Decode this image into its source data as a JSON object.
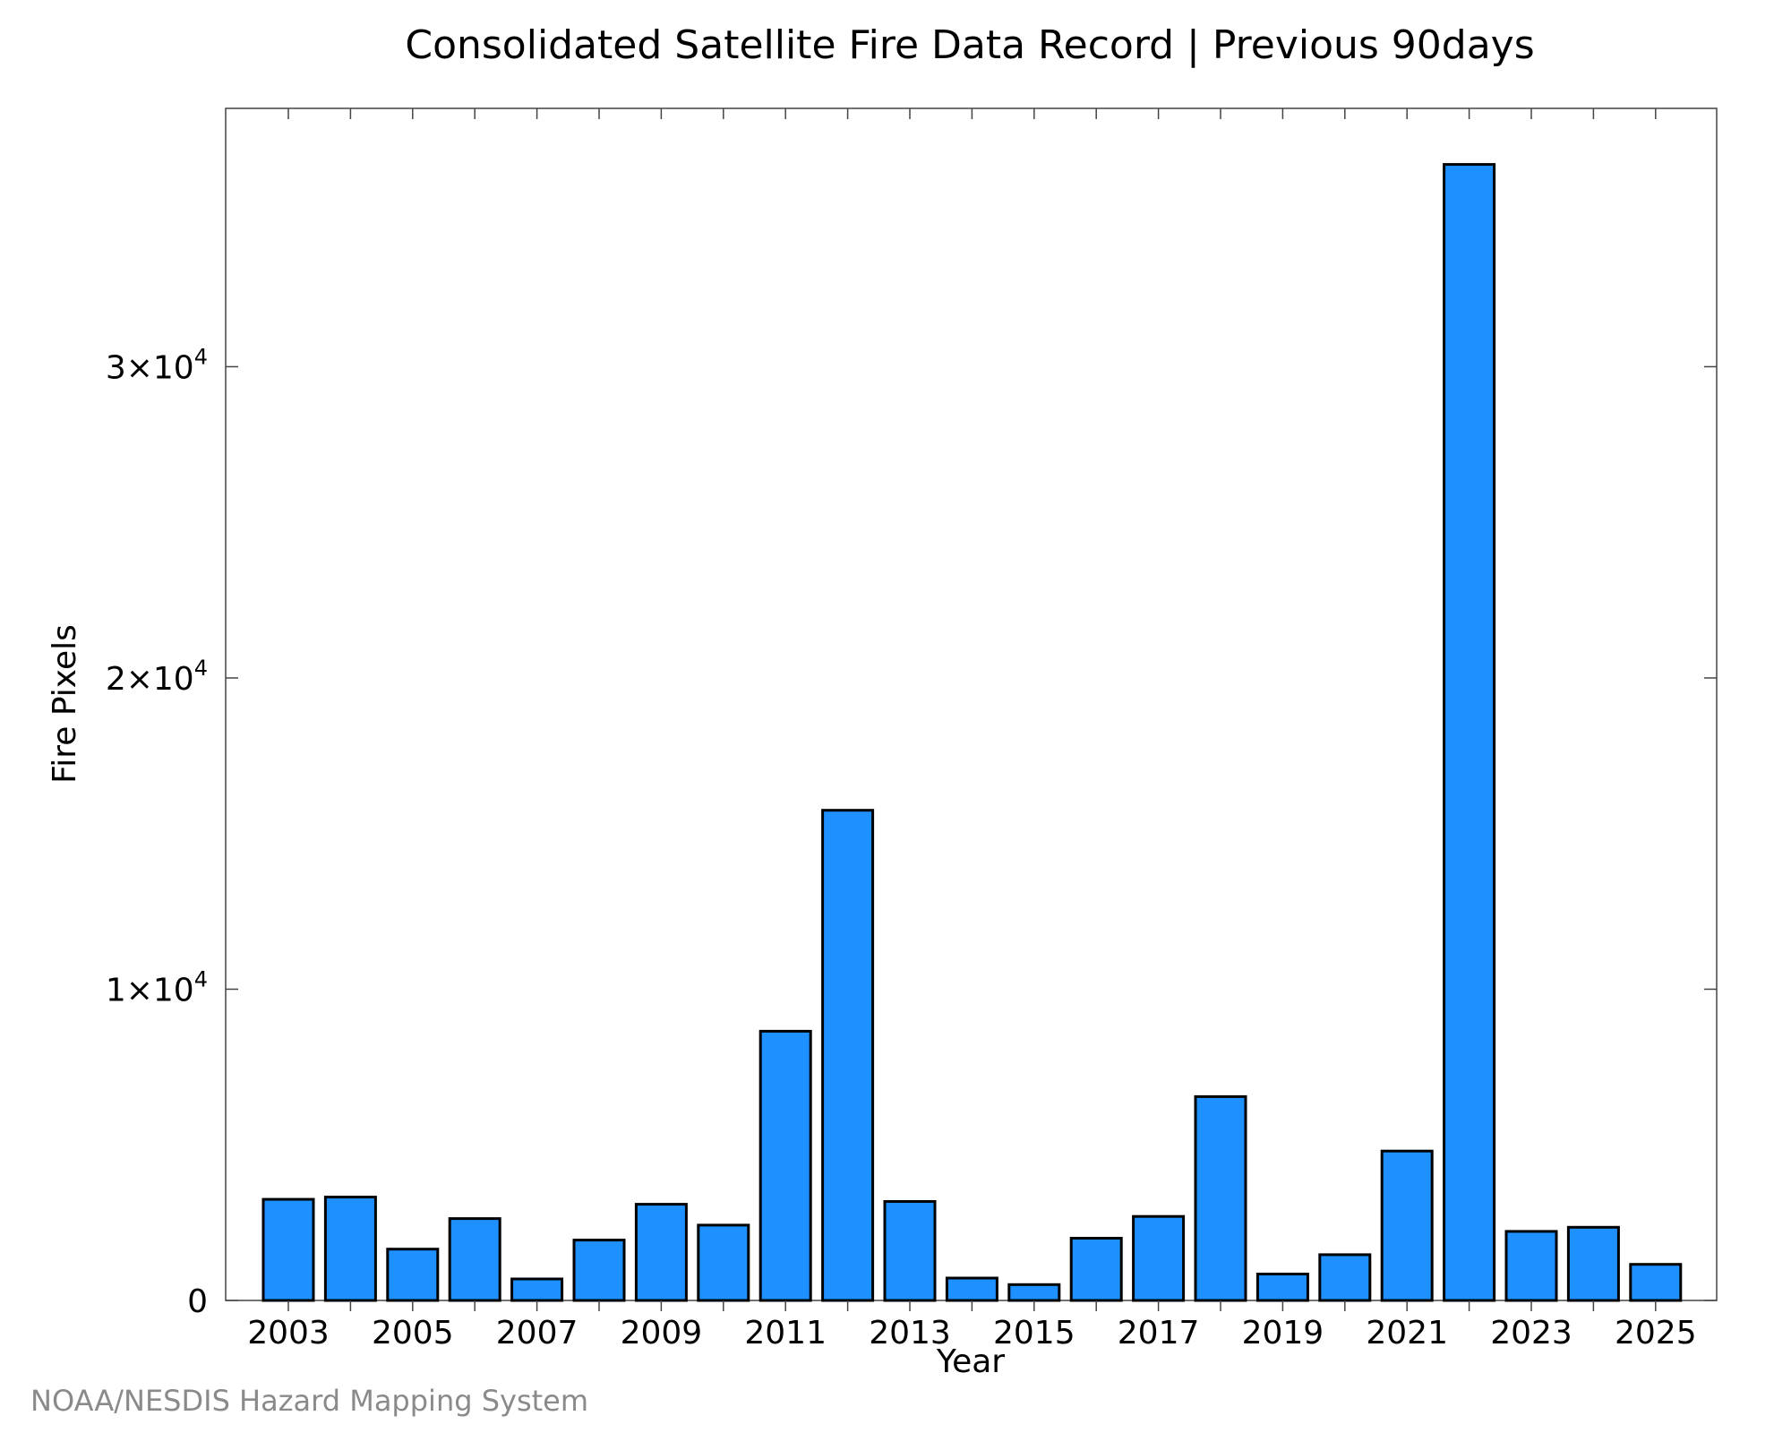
{
  "chart_data": {
    "type": "bar",
    "title": "Consolidated Satellite Fire Data Record | Previous 90days",
    "xlabel": "Year",
    "ylabel": "Fire Pixels",
    "categories": [
      "2003",
      "2004",
      "2005",
      "2006",
      "2007",
      "2008",
      "2009",
      "2010",
      "2011",
      "2012",
      "2013",
      "2014",
      "2015",
      "2016",
      "2017",
      "2018",
      "2019",
      "2020",
      "2021",
      "2022",
      "2023",
      "2024",
      "2025"
    ],
    "values": [
      3250,
      3320,
      1650,
      2630,
      690,
      1940,
      3090,
      2420,
      8650,
      15750,
      3180,
      720,
      510,
      2000,
      2700,
      6550,
      850,
      1470,
      4800,
      36500,
      2220,
      2350,
      1160
    ],
    "x_tick_labels": [
      "2003",
      "2005",
      "2007",
      "2009",
      "2011",
      "2013",
      "2015",
      "2017",
      "2019",
      "2021",
      "2023",
      "2025"
    ],
    "y_ticks": [
      {
        "value": 0,
        "base": "0",
        "exp": ""
      },
      {
        "value": 10000,
        "base": "1×10",
        "exp": "4"
      },
      {
        "value": 20000,
        "base": "2×10",
        "exp": "4"
      },
      {
        "value": 30000,
        "base": "3×10",
        "exp": "4"
      }
    ],
    "ylim": [
      0,
      38300
    ],
    "grid": false,
    "bar_color": "#1e90ff",
    "credit": "NOAA/NESDIS Hazard Mapping System"
  }
}
